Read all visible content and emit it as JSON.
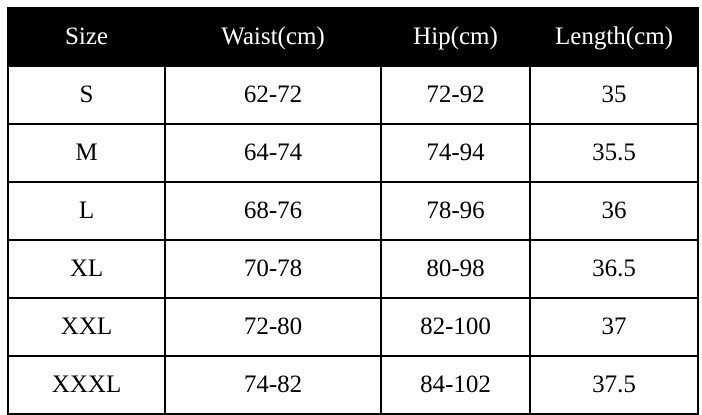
{
  "table": {
    "headers": [
      "Size",
      "Waist(cm)",
      "Hip(cm)",
      "Length(cm)"
    ],
    "rows": [
      [
        "S",
        "62-72",
        "72-92",
        "35"
      ],
      [
        "M",
        "64-74",
        "74-94",
        "35.5"
      ],
      [
        "L",
        "68-76",
        "78-96",
        "36"
      ],
      [
        "XL",
        "70-78",
        "80-98",
        "36.5"
      ],
      [
        "XXL",
        "72-80",
        "82-100",
        "37"
      ],
      [
        "XXXL",
        "74-82",
        "84-102",
        "37.5"
      ]
    ]
  },
  "colors": {
    "header_bg": "#000000",
    "header_text": "#ffffff",
    "grid_lines": "#000000",
    "cell_bg": "#ffffff",
    "cell_text": "#000000"
  }
}
